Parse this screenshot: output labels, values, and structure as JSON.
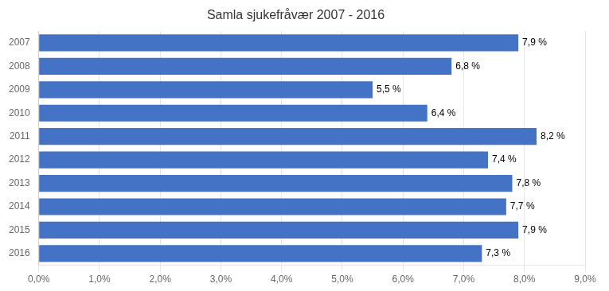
{
  "chart_data": {
    "type": "bar",
    "orientation": "horizontal",
    "title": "Samla sjukefråvær 2007 - 2016",
    "categories": [
      "2007",
      "2008",
      "2009",
      "2010",
      "2011",
      "2012",
      "2013",
      "2014",
      "2015",
      "2016"
    ],
    "values": [
      7.9,
      6.8,
      5.5,
      6.4,
      8.2,
      7.4,
      7.8,
      7.7,
      7.9,
      7.3
    ],
    "value_labels": [
      "7,9 %",
      "6,8 %",
      "5,5 %",
      "6,4 %",
      "8,2 %",
      "7,4 %",
      "7,8 %",
      "7,7 %",
      "7,9 %",
      "7,3 %"
    ],
    "data_labels": true,
    "color": "#4472C4",
    "xlim": [
      0,
      9.0
    ],
    "xticks": [
      {
        "value": 0.0,
        "label": "0,0%"
      },
      {
        "value": 1.0,
        "label": "1,0%"
      },
      {
        "value": 2.0,
        "label": "2,0%"
      },
      {
        "value": 3.0,
        "label": "3,0%"
      },
      {
        "value": 4.0,
        "label": "4,0%"
      },
      {
        "value": 5.0,
        "label": "5,0%"
      },
      {
        "value": 6.0,
        "label": "6,0%"
      },
      {
        "value": 7.0,
        "label": "7,0%"
      },
      {
        "value": 8.0,
        "label": "8,0%"
      },
      {
        "value": 9.0,
        "label": "9,0%"
      }
    ],
    "grid": true
  }
}
